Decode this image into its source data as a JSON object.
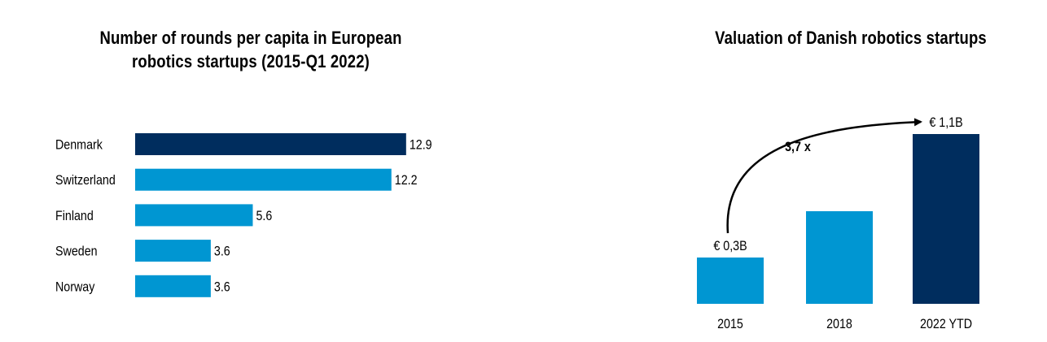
{
  "colors": {
    "highlight": "#002d5e",
    "bar": "#0096d2",
    "text": "#000000"
  },
  "chart_data": [
    {
      "type": "bar",
      "orientation": "horizontal",
      "title": "Number of rounds per capita in European robotics startups (2015-Q1 2022)",
      "categories": [
        "Denmark",
        "Switzerland",
        "Finland",
        "Sweden",
        "Norway"
      ],
      "values": [
        12.9,
        12.2,
        5.6,
        3.6,
        3.6
      ],
      "value_labels": [
        "12.9",
        "12.2",
        "5.6",
        "3.6",
        "3.6"
      ],
      "highlight_index": 0,
      "grid": false,
      "legend": "none"
    },
    {
      "type": "bar",
      "orientation": "vertical",
      "title": "Valuation of Danish robotics startups",
      "categories": [
        "2015",
        "2018",
        "2022 YTD"
      ],
      "values": [
        0.3,
        0.6,
        1.1
      ],
      "value_labels": [
        "€ 0,3B",
        "",
        "€ 1,1B"
      ],
      "highlight_index": 2,
      "annotation": "3,7 x",
      "grid": false,
      "legend": "none"
    }
  ]
}
